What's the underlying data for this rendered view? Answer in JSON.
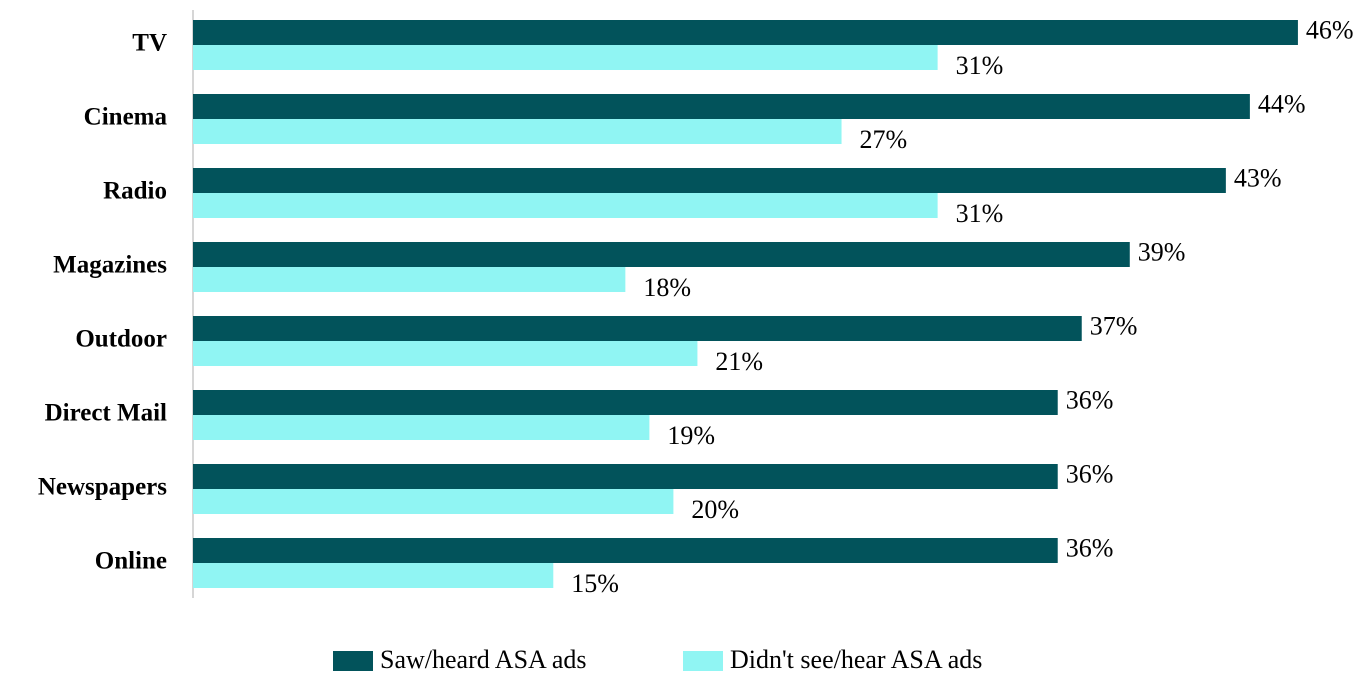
{
  "chart_data": {
    "type": "bar",
    "orientation": "horizontal",
    "categories": [
      "TV",
      "Cinema",
      "Radio",
      "Magazines",
      "Outdoor",
      "Direct Mail",
      "Newspapers",
      "Online"
    ],
    "series": [
      {
        "name": "Saw/heard ASA ads",
        "color": "#02535b",
        "values": [
          46,
          44,
          43,
          39,
          37,
          36,
          36,
          36
        ],
        "value_labels": [
          "46%",
          "44%",
          "43%",
          "39%",
          "37%",
          "36%",
          "36%",
          "36%"
        ]
      },
      {
        "name": "Didn't see/hear ASA ads",
        "color": "#90f5f3",
        "values": [
          31,
          27,
          31,
          18,
          21,
          19,
          20,
          15
        ],
        "value_labels": [
          "31%",
          "27%",
          "31%",
          "18%",
          "21%",
          "19%",
          "20%",
          "15%"
        ]
      }
    ],
    "legend": "bottom"
  }
}
